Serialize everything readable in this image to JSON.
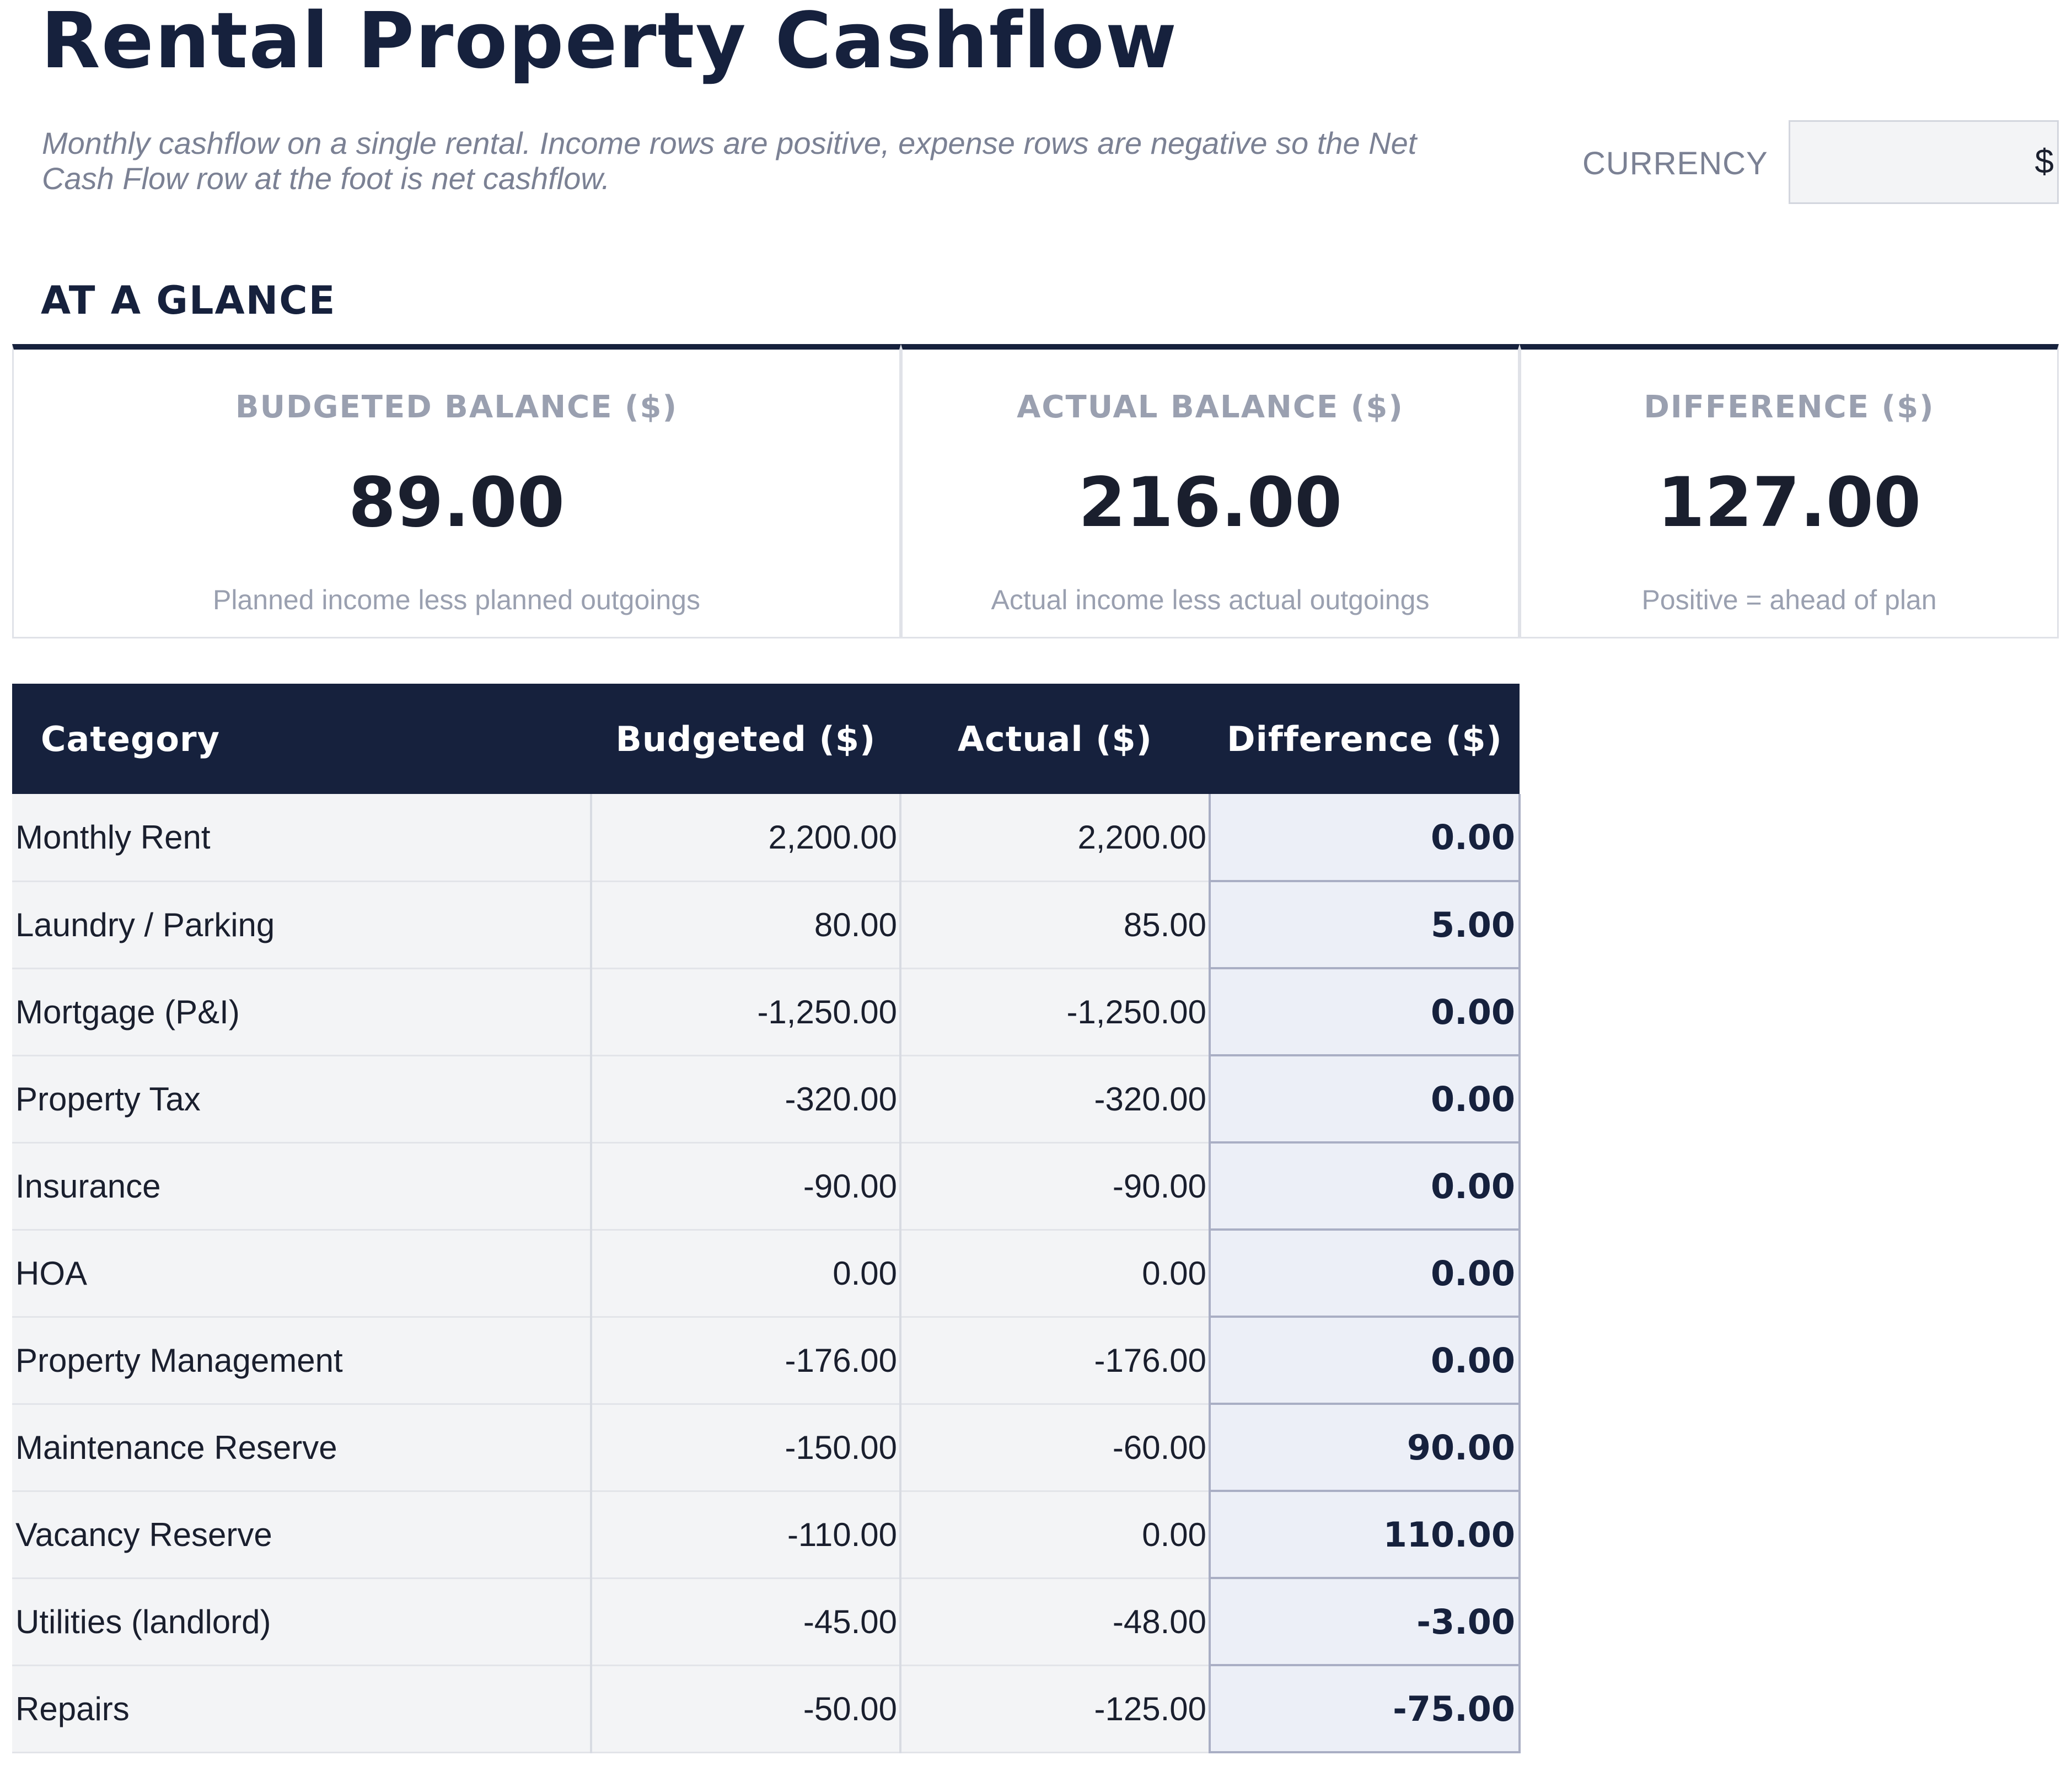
{
  "header": {
    "title": "Rental Property Cashflow",
    "subtitle": "Monthly cashflow on a single rental. Income rows are positive, expense rows are negative so the Net Cash Flow row at the foot is net cashflow.",
    "currency_label": "CURRENCY",
    "currency_value": "$"
  },
  "glance": {
    "heading": "AT A GLANCE",
    "cards": [
      {
        "label": "BUDGETED BALANCE ($)",
        "value": "89.00",
        "note": "Planned income less planned outgoings"
      },
      {
        "label": "ACTUAL BALANCE ($)",
        "value": "216.00",
        "note": "Actual income less actual outgoings"
      },
      {
        "label": "DIFFERENCE ($)",
        "value": "127.00",
        "note": "Positive = ahead of plan"
      }
    ]
  },
  "table": {
    "columns": [
      "Category",
      "Budgeted ($)",
      "Actual ($)",
      "Difference ($)"
    ],
    "rows": [
      {
        "category": "Monthly Rent",
        "budgeted": "2,200.00",
        "actual": "2,200.00",
        "difference": "0.00"
      },
      {
        "category": "Laundry / Parking",
        "budgeted": "80.00",
        "actual": "85.00",
        "difference": "5.00"
      },
      {
        "category": "Mortgage (P&I)",
        "budgeted": "-1,250.00",
        "actual": "-1,250.00",
        "difference": "0.00"
      },
      {
        "category": "Property Tax",
        "budgeted": "-320.00",
        "actual": "-320.00",
        "difference": "0.00"
      },
      {
        "category": "Insurance",
        "budgeted": "-90.00",
        "actual": "-90.00",
        "difference": "0.00"
      },
      {
        "category": "HOA",
        "budgeted": "0.00",
        "actual": "0.00",
        "difference": "0.00"
      },
      {
        "category": "Property Management",
        "budgeted": "-176.00",
        "actual": "-176.00",
        "difference": "0.00"
      },
      {
        "category": "Maintenance Reserve",
        "budgeted": "-150.00",
        "actual": "-60.00",
        "difference": "90.00"
      },
      {
        "category": "Vacancy Reserve",
        "budgeted": "-110.00",
        "actual": "0.00",
        "difference": "110.00"
      },
      {
        "category": "Utilities (landlord)",
        "budgeted": "-45.00",
        "actual": "-48.00",
        "difference": "-3.00"
      },
      {
        "category": "Repairs",
        "budgeted": "-50.00",
        "actual": "-125.00",
        "difference": "-75.00"
      }
    ]
  },
  "colors": {
    "navy": "#16213d",
    "muted_text": "#7b8194",
    "cell_bg": "#f3f4f6",
    "diff_bg": "#eceff7"
  }
}
